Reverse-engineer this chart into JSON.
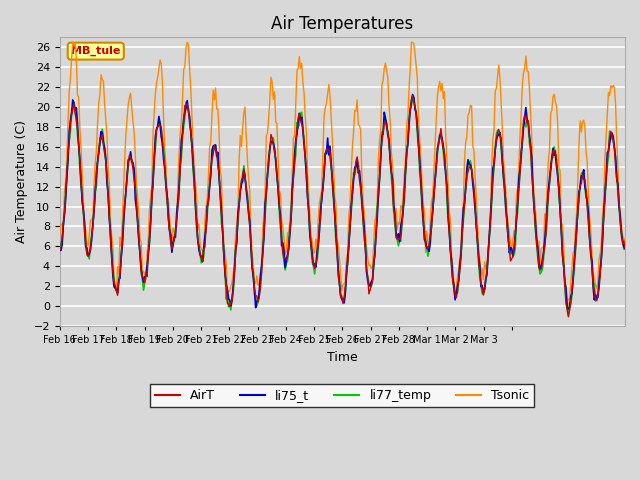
{
  "title": "Air Temperatures",
  "xlabel": "Time",
  "ylabel": "Air Temperature (C)",
  "ylim": [
    -2,
    27
  ],
  "background_color": "#d8d8d8",
  "grid_color": "#ffffff",
  "colors": {
    "AirT": "#cc0000",
    "li75_t": "#0000cc",
    "li77_temp": "#00cc00",
    "Tsonic": "#ff8800"
  },
  "xtick_labels": [
    "Feb 16",
    "Feb 17",
    "Feb 18",
    "Feb 19",
    "Feb 20",
    "Feb 21",
    "Feb 22",
    "Feb 23",
    "Feb 24",
    "Feb 25",
    "Feb 26",
    "Feb 27",
    "Feb 28",
    "Mar 1",
    "Mar 2",
    "Mar 3",
    ""
  ],
  "annotation_text": "MB_tule",
  "annotation_color": "#cc0000",
  "annotation_bg": "#ffff99",
  "annotation_border": "#cc8800"
}
